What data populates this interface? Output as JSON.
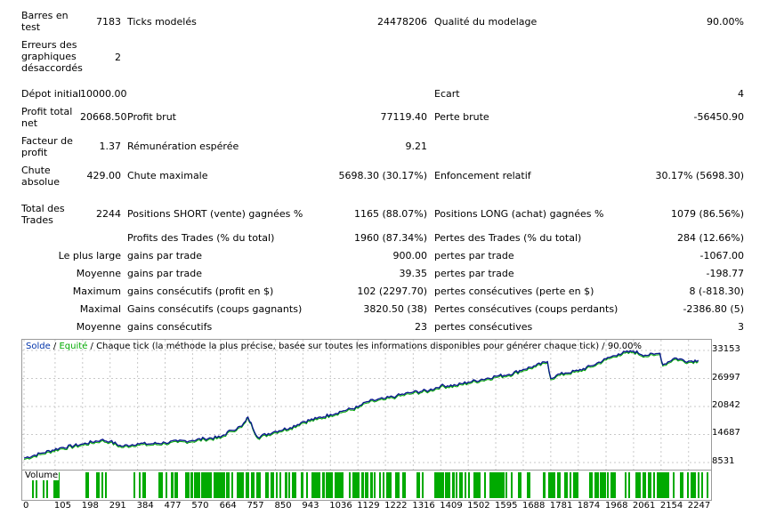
{
  "stats": {
    "bars_label": "Barres en test",
    "bars_value": "7183",
    "ticks_label": "Ticks modelés",
    "ticks_value": "24478206",
    "quality_label": "Qualité du modelage",
    "quality_value": "90.00%",
    "errors_label": "Erreurs des graphiques désaccordés",
    "errors_value": "2",
    "deposit_label": "Dépot initial",
    "deposit_value": "10000.00",
    "spread_label": "Ecart",
    "spread_value": "4",
    "net_profit_label": "Profit total net",
    "net_profit_value": "20668.50",
    "gross_profit_label": "Profit brut",
    "gross_profit_value": "77119.40",
    "gross_loss_label": "Perte brute",
    "gross_loss_value": "-56450.90",
    "profit_factor_label": "Facteur de profit",
    "profit_factor_value": "1.37",
    "expected_payoff_label": "Rémunération espérée",
    "expected_payoff_value": "9.21",
    "abs_drawdown_label": "Chute absolue",
    "abs_drawdown_value": "429.00",
    "max_drawdown_label": "Chute maximale",
    "max_drawdown_value": "5698.30 (30.17%)",
    "rel_drawdown_label": "Enfoncement relatif",
    "rel_drawdown_value": "30.17% (5698.30)",
    "total_trades_label": "Total des Trades",
    "total_trades_value": "2244",
    "short_label": "Positions SHORT (vente) gagnées %",
    "short_value": "1165 (88.07%)",
    "long_label": "Positions LONG (achat) gagnées %",
    "long_value": "1079 (86.56%)",
    "profit_trades_label": "Profits des Trades (% du total)",
    "profit_trades_value": "1960 (87.34%)",
    "loss_trades_label": "Pertes des Trades (% du total)",
    "loss_trades_value": "284 (12.66%)",
    "largest_label": "Le plus large",
    "largest_profit_label": "gains par trade",
    "largest_profit_value": "900.00",
    "largest_loss_label": "pertes par trade",
    "largest_loss_value": "-1067.00",
    "average_label": "Moyenne",
    "average_profit_label": "gains par trade",
    "average_profit_value": "39.35",
    "average_loss_label": "pertes par trade",
    "average_loss_value": "-198.77",
    "maximum_label": "Maximum",
    "max_consec_wins_label": "gains consécutifs (profit en $)",
    "max_consec_wins_value": "102 (2297.70)",
    "max_consec_losses_label": "pertes consécutives (perte en $)",
    "max_consec_losses_value": "8 (-818.30)",
    "maximal_label": "Maximal",
    "maximal_consec_profit_label": "Gains consécutifs (coups gagnants)",
    "maximal_consec_profit_value": "3820.50 (38)",
    "maximal_consec_loss_label": "Pertes consécutives (coups perdants)",
    "maximal_consec_loss_value": "-2386.80 (5)",
    "average2_label": "Moyenne",
    "avg_consec_wins_label": "gains consécutifs",
    "avg_consec_wins_value": "23",
    "avg_consec_losses_label": "pertes consécutives",
    "avg_consec_losses_value": "3"
  },
  "chart": {
    "legend_solde": "Solde",
    "legend_sep1": " / ",
    "legend_equite": "Equité",
    "legend_rest": " / Chaque tick (la méthode la plus précise, basée sur toutes les informations disponibles pour générer chaque tick) / 90.00%",
    "volume_label": "Volume",
    "colors": {
      "balance": "#0a1a8c",
      "equity": "#00aa00",
      "volume": "#00aa00",
      "grid": "#c8c8c8"
    }
  },
  "chart_data": {
    "type": "line",
    "y_ticks": [
      "33153",
      "26997",
      "20842",
      "14687",
      "8531"
    ],
    "ylim": [
      8531,
      33153
    ],
    "x_ticks": [
      "0",
      "105",
      "198",
      "291",
      "384",
      "477",
      "570",
      "664",
      "757",
      "850",
      "943",
      "1036",
      "1129",
      "1222",
      "1316",
      "1409",
      "1502",
      "1595",
      "1688",
      "1781",
      "1874",
      "1968",
      "2061",
      "2154",
      "2247"
    ],
    "xlim": [
      0,
      2317
    ],
    "series": [
      {
        "name": "Solde",
        "x": [
          0,
          60,
          120,
          200,
          260,
          291,
          330,
          384,
          420,
          477,
          520,
          570,
          610,
          664,
          700,
          736,
          750,
          757,
          790,
          850,
          900,
          943,
          990,
          1036,
          1080,
          1129,
          1160,
          1222,
          1260,
          1316,
          1370,
          1409,
          1460,
          1502,
          1550,
          1595,
          1640,
          1688,
          1730,
          1770,
          1781,
          1800,
          1830,
          1874,
          1920,
          1968,
          2010,
          2061,
          2100,
          2130,
          2150,
          2160,
          2200,
          2247,
          2280
        ],
        "y": [
          9500,
          10600,
          11700,
          12600,
          13500,
          13200,
          12100,
          12700,
          12600,
          12900,
          13200,
          13400,
          13800,
          14100,
          15600,
          16500,
          17700,
          18500,
          14100,
          15400,
          16200,
          17500,
          18200,
          19100,
          19900,
          20700,
          21900,
          22600,
          23200,
          24000,
          24400,
          25400,
          25500,
          26200,
          26800,
          27500,
          27900,
          29000,
          29800,
          30700,
          27000,
          27700,
          28200,
          28700,
          29800,
          31300,
          32400,
          33000,
          32100,
          32300,
          32500,
          30000,
          31500,
          30800,
          31000
        ]
      }
    ],
    "volume": "dense trade activity across the range"
  },
  "xticks_ui": [
    "0",
    "105",
    "198",
    "291",
    "384",
    "477",
    "570",
    "664",
    "757",
    "850",
    "943",
    "1036",
    "1129",
    "1222",
    "1316",
    "1409",
    "1502",
    "1595",
    "1688",
    "1781",
    "1874",
    "1968",
    "2061",
    "2154",
    "2247"
  ]
}
